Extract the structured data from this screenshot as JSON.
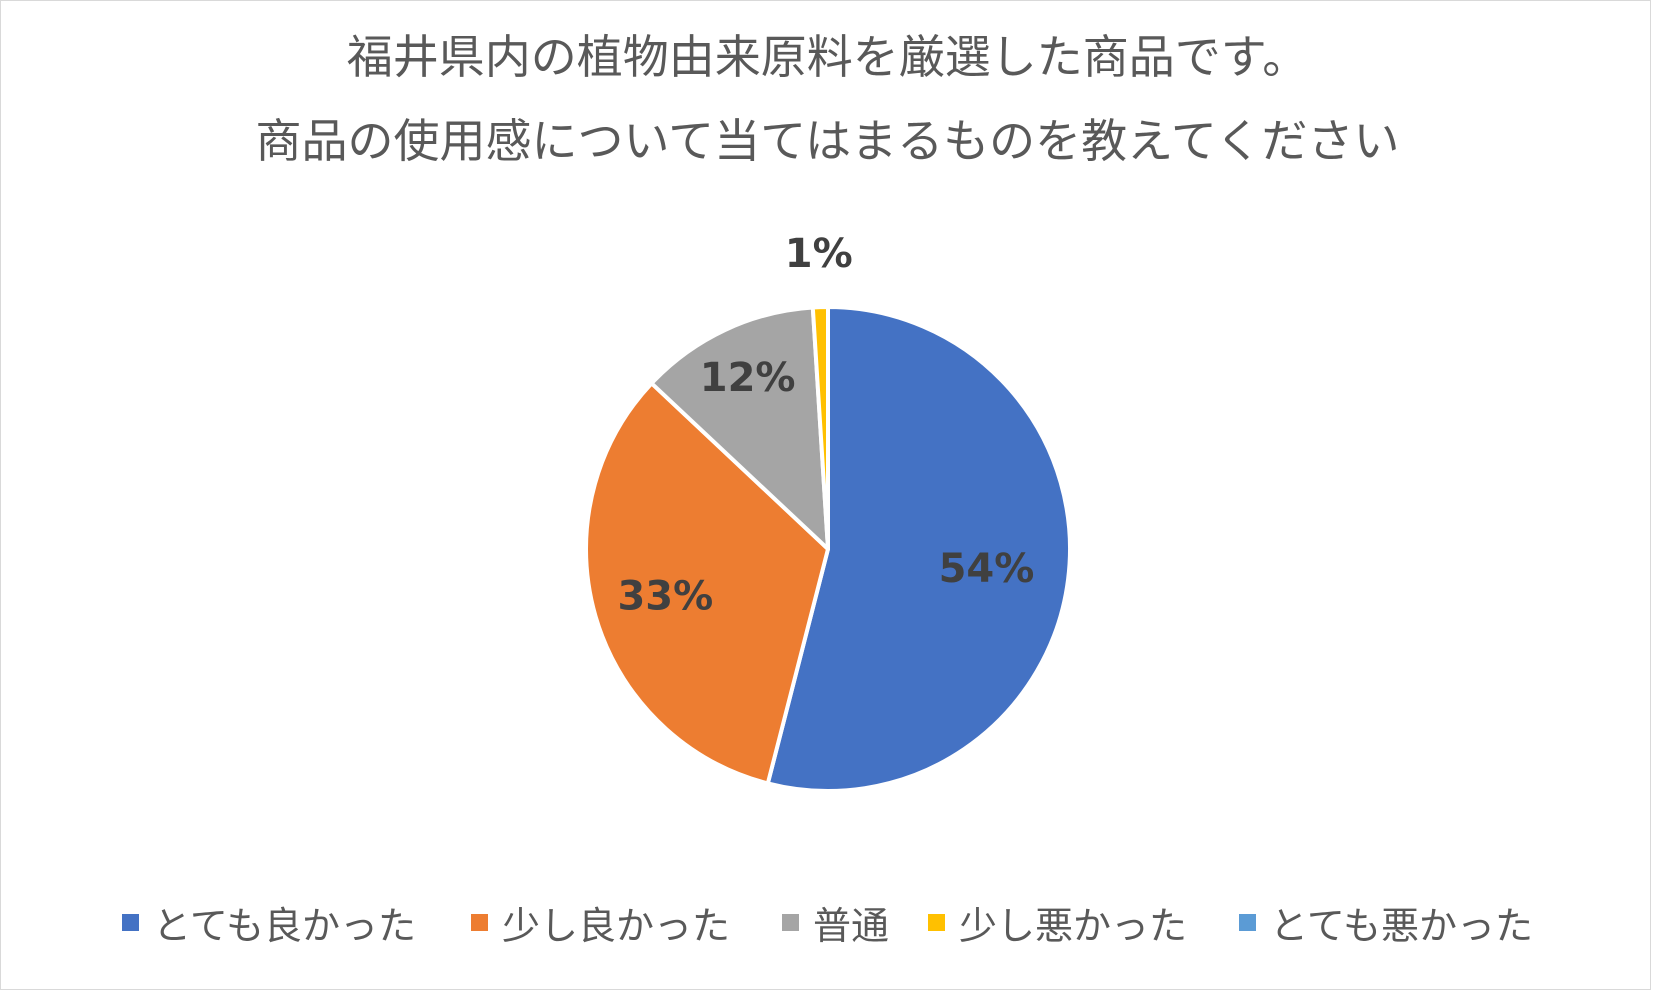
{
  "chart_data": {
    "type": "pie",
    "title_lines": [
      "福井県内の植物由来原料を厳選した商品です。",
      "商品の使用感について当てはまるものを教えてください"
    ],
    "categories": [
      "とても良かった",
      "少し良かった",
      "普通",
      "少し悪かった",
      "とても悪かった"
    ],
    "values": [
      54,
      33,
      12,
      1,
      0
    ],
    "value_labels": [
      "54%",
      "33%",
      "12%",
      "1%",
      ""
    ],
    "colors": [
      "#4472c4",
      "#ed7d31",
      "#a5a5a5",
      "#ffc000",
      "#5b9bd5"
    ],
    "start_angle_deg": 0,
    "direction": "clockwise",
    "legend_position": "bottom"
  }
}
